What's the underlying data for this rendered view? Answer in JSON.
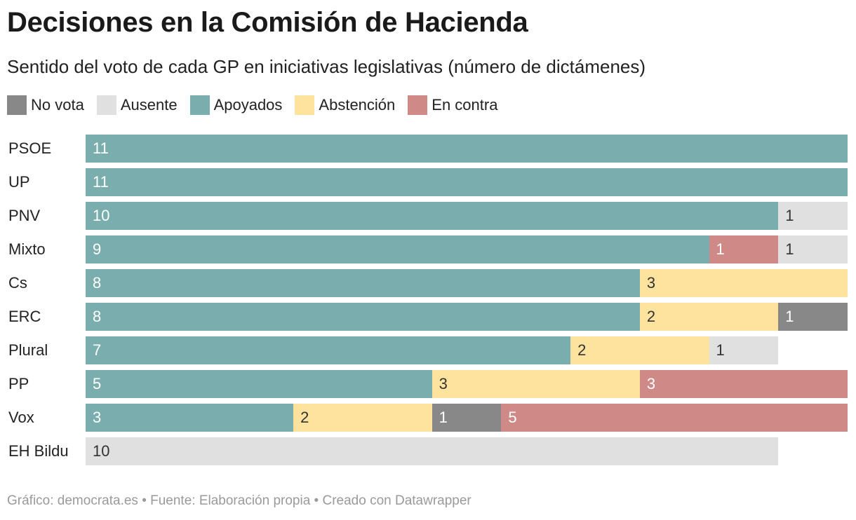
{
  "header": {
    "title": "Decisiones en la Comisión de Hacienda",
    "subtitle": "Sentido del voto de cada GP en iniciativas legislativas (número de dictámenes)"
  },
  "footer": {
    "text": "Gráfico: democrata.es • Fuente: Elaboración propia • Creado con Datawrapper"
  },
  "chart_data": {
    "type": "bar",
    "orientation": "horizontal",
    "stacked": true,
    "title": "Decisiones en la Comisión de Hacienda",
    "subtitle": "Sentido del voto de cada GP en iniciativas legislativas (número de dictámenes)",
    "xlim": [
      0,
      11
    ],
    "grid": false,
    "legend_position": "top-left",
    "categories": [
      "PSOE",
      "UP",
      "PNV",
      "Mixto",
      "Cs",
      "ERC",
      "Plural",
      "PP",
      "Vox",
      "EH Bildu"
    ],
    "stack_order": [
      "Apoyados",
      "Abstención",
      "No vota",
      "En contra",
      "Ausente"
    ],
    "legend_order": [
      "No vota",
      "Ausente",
      "Apoyados",
      "Abstención",
      "En contra"
    ],
    "series": [
      {
        "name": "No vota",
        "color": "#888888",
        "label_color": "#ffffff",
        "values": [
          0,
          0,
          0,
          0,
          0,
          1,
          0,
          0,
          1,
          0
        ]
      },
      {
        "name": "Ausente",
        "color": "#e0e0e0",
        "label_color": "#333333",
        "values": [
          0,
          0,
          1,
          1,
          0,
          0,
          1,
          0,
          0,
          10
        ]
      },
      {
        "name": "Apoyados",
        "color": "#7aaeae",
        "label_color": "#ffffff",
        "values": [
          11,
          11,
          10,
          9,
          8,
          8,
          7,
          5,
          3,
          0
        ]
      },
      {
        "name": "Abstención",
        "color": "#fde39d",
        "label_color": "#333333",
        "values": [
          0,
          0,
          0,
          0,
          3,
          2,
          2,
          3,
          2,
          0
        ]
      },
      {
        "name": "En contra",
        "color": "#cf8987",
        "label_color": "#ffffff",
        "values": [
          0,
          0,
          0,
          1,
          0,
          0,
          0,
          3,
          5,
          0
        ]
      }
    ]
  }
}
